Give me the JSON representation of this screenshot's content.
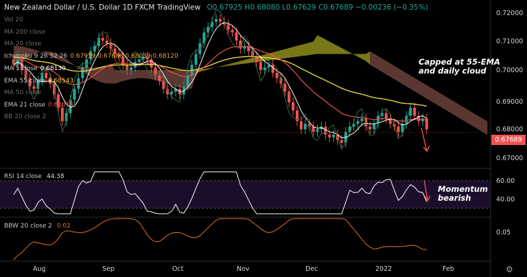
{
  "header": {
    "title": "New Zealand Dollar / U.S. Dollar  1D  FXCM  TradingView",
    "ohlc": "O0.67925 H0.68080 L0.67629 C0.67689 −0.00236 (−0.35%)"
  },
  "legend": [
    {
      "label": "Vol 20",
      "value": "",
      "dim": true
    },
    {
      "label": "MA 200 close",
      "value": "",
      "dim": true
    },
    {
      "label": "MA 20 close",
      "value": "",
      "dim": true
    },
    {
      "label": "Ichimoku 9 26 52 26",
      "value": "0.67959 0.67688 0.68039 0.68120",
      "dim": false
    },
    {
      "label": "MA 5 close",
      "value": "0.68130",
      "dim": false
    },
    {
      "label": "EMA 55 close",
      "value": "0.68543",
      "dim": false
    },
    {
      "label": "MA 50 close",
      "value": "",
      "dim": true
    },
    {
      "label": "EMA 21 close",
      "value": "0.68016",
      "dim": false
    },
    {
      "label": "BB 20 close 2",
      "value": "",
      "dim": true
    }
  ],
  "colors": {
    "up": "#26a69a",
    "down": "#ef5350",
    "ema55": "#e6d53b",
    "ema21": "#ef5350",
    "ma5": "#ffffff",
    "cloud_bear": "#7a4a42",
    "cloud_bull": "#a0a020",
    "rsi": "#ffffff",
    "bbw": "#e8741c"
  },
  "annotations": {
    "main": [
      "Capped at 55-EMA",
      "and daily cloud"
    ],
    "rsi": [
      "Momentum",
      "bearish"
    ]
  },
  "rsi_panel": {
    "label": "RSI 14 close",
    "value": "44.38",
    "ticks": [
      "60.00",
      "40.00"
    ]
  },
  "bbw_panel": {
    "label": "BBW 20 close 2",
    "value": "0.02",
    "ticks": [
      "0.05"
    ]
  },
  "price_axis": [
    "0.72000",
    "0.71000",
    "0.70000",
    "0.69000",
    "0.68000",
    "0.67000"
  ],
  "last_price": "0.67689",
  "time_axis": [
    "Aug",
    "Sep",
    "Oct",
    "Nov",
    "Dec",
    "2022",
    "Feb"
  ],
  "chart_data": {
    "type": "candlestick",
    "symbol": "NZDUSD",
    "interval": "1D",
    "ylim": [
      0.6665,
      0.7225
    ],
    "close_path": [
      0.702,
      0.704,
      0.7,
      0.697,
      0.694,
      0.693,
      0.696,
      0.699,
      0.697,
      0.695,
      0.691,
      0.686,
      0.681,
      0.684,
      0.689,
      0.693,
      0.697,
      0.701,
      0.704,
      0.707,
      0.709,
      0.712,
      0.711,
      0.71,
      0.708,
      0.706,
      0.705,
      0.702,
      0.7,
      0.701,
      0.703,
      0.704,
      0.705,
      0.704,
      0.701,
      0.698,
      0.696,
      0.693,
      0.691,
      0.692,
      0.693,
      0.691,
      0.694,
      0.698,
      0.702,
      0.706,
      0.71,
      0.714,
      0.716,
      0.718,
      0.719,
      0.718,
      0.717,
      0.715,
      0.714,
      0.711,
      0.708,
      0.709,
      0.707,
      0.705,
      0.703,
      0.7,
      0.701,
      0.702,
      0.699,
      0.697,
      0.695,
      0.692,
      0.688,
      0.685,
      0.681,
      0.678,
      0.68,
      0.679,
      0.677,
      0.678,
      0.679,
      0.676,
      0.675,
      0.676,
      0.674,
      0.673,
      0.677,
      0.679,
      0.68,
      0.681,
      0.682,
      0.679,
      0.678,
      0.68,
      0.683,
      0.684,
      0.682,
      0.68,
      0.679,
      0.677,
      0.68,
      0.683,
      0.686,
      0.683,
      0.681,
      0.682,
      0.678
    ],
    "rsi_range": [
      20,
      85
    ],
    "bbw_range": [
      0,
      0.085
    ]
  }
}
